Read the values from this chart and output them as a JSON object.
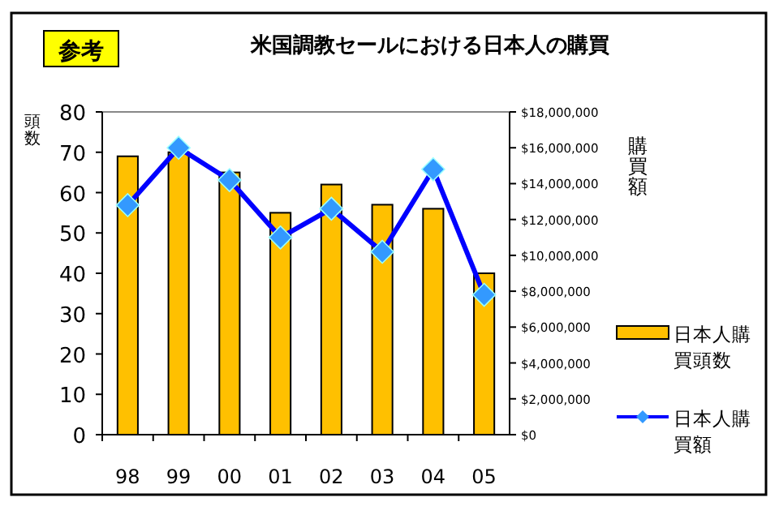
{
  "chart_data": {
    "type": "bar",
    "title": "米国調教セールにおける日本人の購買",
    "annotations": [
      "参考"
    ],
    "ylabel": "頭数",
    "y2label": "購買額",
    "categories": [
      "98",
      "99",
      "00",
      "01",
      "02",
      "03",
      "04",
      "05"
    ],
    "series": [
      {
        "name": "日本人購買頭数",
        "color": "#ffc000",
        "values": [
          69,
          70,
          65,
          55,
          62,
          57,
          56,
          40
        ]
      },
      {
        "name": "日本人購買額",
        "type": "line",
        "axis": "y2",
        "color": "#0000ff",
        "marker": "diamond",
        "values": [
          12800000,
          16000000,
          14200000,
          11000000,
          12600000,
          10200000,
          14800000,
          7800000
        ]
      }
    ],
    "ylim": [
      0,
      80
    ],
    "yticks": [
      0,
      10,
      20,
      30,
      40,
      50,
      60,
      70,
      80
    ],
    "y2lim": [
      0,
      18000000
    ],
    "y2ticks": [
      {
        "value": 0,
        "label": "$0"
      },
      {
        "value": 2000000,
        "label": "$2,000,000"
      },
      {
        "value": 4000000,
        "label": "$4,000,000"
      },
      {
        "value": 6000000,
        "label": "$6,000,000"
      },
      {
        "value": 8000000,
        "label": "$8,000,000"
      },
      {
        "value": 10000000,
        "label": "$10,000,000"
      },
      {
        "value": 12000000,
        "label": "$12,000,000"
      },
      {
        "value": 14000000,
        "label": "$14,000,000"
      },
      {
        "value": 16000000,
        "label": "$16,000,000"
      },
      {
        "value": 18000000,
        "label": "$18,000,000"
      }
    ],
    "legend": "right",
    "grid": false
  }
}
